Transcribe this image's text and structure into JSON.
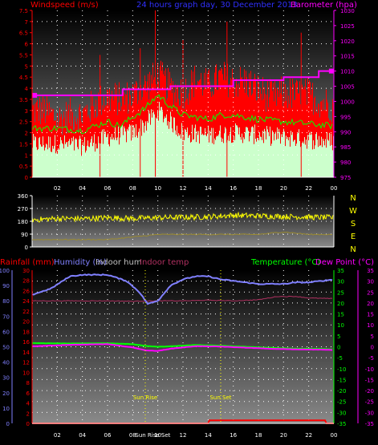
{
  "header": {
    "left": "Windspeed (m/s)",
    "center": "24 hours graph day, 30 December 2013",
    "right": "Barometer (hpa)"
  },
  "colors": {
    "wind": "#ff0000",
    "gust": "#ff0000",
    "avg": "#00ff00",
    "direction": "#ffff00",
    "barometer": "#ff00ff",
    "humidity": "#8080ff",
    "indoor_hum": "#c0c0c0",
    "indoor_temp": "#b03060",
    "temperature": "#00ff00",
    "dew": "#ff00ff",
    "rain": "#ff0000"
  },
  "x_ticks": [
    "02",
    "04",
    "06",
    "08",
    "10",
    "12",
    "14",
    "16",
    "18",
    "20",
    "22",
    "00"
  ],
  "chart_data": [
    {
      "type": "bar",
      "name": "wind",
      "left_axis_ticks": [
        "0",
        "0.5",
        "1",
        "1.5",
        "2",
        "2.5",
        "3",
        "3.5",
        "4",
        "4.5",
        "5",
        "5.5",
        "6",
        "6.5",
        "7",
        "7.5"
      ],
      "right_axis_ticks": [
        "975",
        "980",
        "985",
        "990",
        "995",
        "1000",
        "1005",
        "1010",
        "1015",
        "1020",
        "1025",
        "1030"
      ],
      "ylim": [
        0,
        7.5
      ],
      "barometer_ylim": [
        975,
        1030
      ],
      "barometer_steps": [
        [
          0,
          1002
        ],
        [
          7.2,
          1004
        ],
        [
          11,
          1005
        ],
        [
          16,
          1007
        ],
        [
          20,
          1008
        ],
        [
          22.8,
          1010
        ]
      ],
      "gust_profile": [
        [
          0,
          3
        ],
        [
          1,
          3
        ],
        [
          2,
          2.6
        ],
        [
          3,
          2.8
        ],
        [
          4,
          2.8
        ],
        [
          5,
          3.3
        ],
        [
          6,
          3.6
        ],
        [
          7,
          3.5
        ],
        [
          8,
          3.7
        ],
        [
          9,
          4.1
        ],
        [
          10,
          4.6
        ],
        [
          11,
          4
        ],
        [
          12,
          3.8
        ],
        [
          13,
          4.4
        ],
        [
          14,
          4.1
        ],
        [
          15,
          4.5
        ],
        [
          16,
          4.3
        ],
        [
          17,
          4.3
        ],
        [
          18,
          3.9
        ],
        [
          19,
          3.6
        ],
        [
          20,
          3.8
        ],
        [
          21,
          3.7
        ],
        [
          22,
          3.7
        ],
        [
          23,
          3.4
        ],
        [
          24,
          3.2
        ]
      ],
      "avg_profile": [
        [
          0,
          2.2
        ],
        [
          2,
          2.2
        ],
        [
          4,
          2.1
        ],
        [
          6,
          2.5
        ],
        [
          7,
          2.3
        ],
        [
          8,
          2.7
        ],
        [
          9,
          3.1
        ],
        [
          10,
          3.7
        ],
        [
          11,
          3.2
        ],
        [
          12,
          2.8
        ],
        [
          13,
          2.7
        ],
        [
          14,
          2.6
        ],
        [
          15,
          2.8
        ],
        [
          16,
          2.8
        ],
        [
          18,
          2.6
        ],
        [
          20,
          2.5
        ],
        [
          22,
          2.4
        ],
        [
          24,
          2.3
        ]
      ],
      "lull_profile": [
        [
          0,
          1.5
        ],
        [
          2,
          1.5
        ],
        [
          4,
          1.4
        ],
        [
          6,
          1.8
        ],
        [
          8,
          2
        ],
        [
          9,
          2.4
        ],
        [
          10,
          3
        ],
        [
          11,
          2.5
        ],
        [
          12,
          2
        ],
        [
          14,
          1.9
        ],
        [
          16,
          2
        ],
        [
          18,
          1.9
        ],
        [
          20,
          1.8
        ],
        [
          22,
          1.7
        ],
        [
          24,
          1.6
        ]
      ],
      "max_gust": [
        [
          5.4,
          5.5
        ],
        [
          8.6,
          5.8
        ],
        [
          9.8,
          7.5
        ],
        [
          12,
          6.2
        ],
        [
          15.5,
          7
        ],
        [
          21.4,
          6.5
        ]
      ]
    },
    {
      "type": "line",
      "name": "wind direction",
      "left_axis_ticks": [
        "0",
        "90",
        "180",
        "270",
        "360"
      ],
      "right_axis_ticks": [
        "N",
        "W",
        "S",
        "E",
        "N"
      ],
      "ylim": [
        0,
        360
      ],
      "profile": [
        [
          0,
          190
        ],
        [
          2,
          200
        ],
        [
          4,
          198
        ],
        [
          6,
          205
        ],
        [
          8,
          200
        ],
        [
          10,
          205
        ],
        [
          12,
          208
        ],
        [
          14,
          212
        ],
        [
          16,
          222
        ],
        [
          18,
          218
        ],
        [
          20,
          214
        ],
        [
          22,
          210
        ],
        [
          24,
          205
        ]
      ]
    },
    {
      "type": "line",
      "name": "temperature",
      "legend": [
        "Rainfall (mm)",
        "Humidity (%)",
        "Indoor hum",
        "Indoor temp",
        "Temperature (°C)",
        "Dew Point (°C)"
      ],
      "left_axis_ticks": [
        "0",
        "2",
        "4",
        "6",
        "8",
        "10",
        "12",
        "14",
        "16",
        "18",
        "20",
        "22",
        "24",
        "26",
        "28",
        "30"
      ],
      "humidity_ticks": [
        "0",
        "10",
        "20",
        "30",
        "40",
        "50",
        "60",
        "70",
        "80",
        "90",
        "100"
      ],
      "temp_ticks": [
        "-35",
        "-30",
        "-25",
        "-20",
        "-15",
        "-10",
        "-5",
        "0",
        "5",
        "10",
        "15",
        "20",
        "25",
        "30",
        "35"
      ],
      "dew_ticks": [
        "-35",
        "-30",
        "-25",
        "-20",
        "-15",
        "-10",
        "-5",
        "0",
        "5",
        "10",
        "15",
        "20",
        "25",
        "30",
        "35"
      ],
      "ylim": [
        -35,
        35
      ],
      "humidity": [
        [
          0,
          84
        ],
        [
          1.5,
          88
        ],
        [
          3,
          96
        ],
        [
          4,
          97
        ],
        [
          6,
          97
        ],
        [
          7.5,
          93
        ],
        [
          8.5,
          86
        ],
        [
          9.2,
          78
        ],
        [
          10,
          80
        ],
        [
          10.5,
          85
        ],
        [
          11,
          90
        ],
        [
          12,
          94
        ],
        [
          13,
          96
        ],
        [
          14,
          96
        ],
        [
          15,
          94
        ],
        [
          16,
          93
        ],
        [
          17,
          92
        ],
        [
          18,
          91
        ],
        [
          19,
          91
        ],
        [
          20,
          91
        ],
        [
          21,
          92
        ],
        [
          22,
          92
        ],
        [
          23,
          93
        ],
        [
          24,
          94
        ]
      ],
      "indoor_temp": [
        [
          0,
          21
        ],
        [
          4,
          21
        ],
        [
          6,
          21
        ],
        [
          8,
          20.8
        ],
        [
          10,
          21
        ],
        [
          12,
          21
        ],
        [
          14,
          21.3
        ],
        [
          16,
          21
        ],
        [
          18,
          21.5
        ],
        [
          19.5,
          23
        ],
        [
          21,
          23
        ],
        [
          22,
          22.3
        ],
        [
          24,
          22
        ]
      ],
      "indoor_hum": [
        [
          0,
          36
        ],
        [
          6,
          36
        ],
        [
          10,
          37
        ],
        [
          12,
          37
        ],
        [
          16,
          37
        ],
        [
          18,
          37
        ],
        [
          20,
          37.5
        ],
        [
          22,
          37
        ],
        [
          24,
          37
        ]
      ],
      "temperature": [
        [
          0,
          1.7
        ],
        [
          3,
          1.5
        ],
        [
          6,
          1.6
        ],
        [
          8,
          1.2
        ],
        [
          9,
          0.4
        ],
        [
          10,
          0
        ],
        [
          11,
          0.2
        ],
        [
          13,
          0.8
        ],
        [
          15,
          0.5
        ],
        [
          17,
          0
        ],
        [
          19,
          -0.5
        ],
        [
          21,
          -0.9
        ],
        [
          23,
          -1
        ],
        [
          24,
          -1.2
        ]
      ],
      "dew": [
        [
          0,
          0.2
        ],
        [
          3,
          0.9
        ],
        [
          6,
          1.2
        ],
        [
          8,
          -0.3
        ],
        [
          9,
          -1.6
        ],
        [
          10,
          -1.9
        ],
        [
          11,
          -0.9
        ],
        [
          13,
          0.3
        ],
        [
          15,
          0.1
        ],
        [
          17,
          -0.4
        ],
        [
          19,
          -0.9
        ],
        [
          21,
          -1.2
        ],
        [
          23,
          -1.3
        ],
        [
          24,
          -1.5
        ]
      ],
      "rain": [
        [
          0,
          0
        ],
        [
          14,
          0
        ],
        [
          14.1,
          0.6
        ],
        [
          23.3,
          0.6
        ],
        [
          23.4,
          0
        ],
        [
          24,
          0
        ]
      ],
      "sun_rise_hour": 9.0,
      "sun_set_hour": 15.0,
      "sun_rise_label": "Sun Rise",
      "sun_set_label": "Sun Set",
      "x_extra_label": "Sun Rise Set"
    }
  ]
}
